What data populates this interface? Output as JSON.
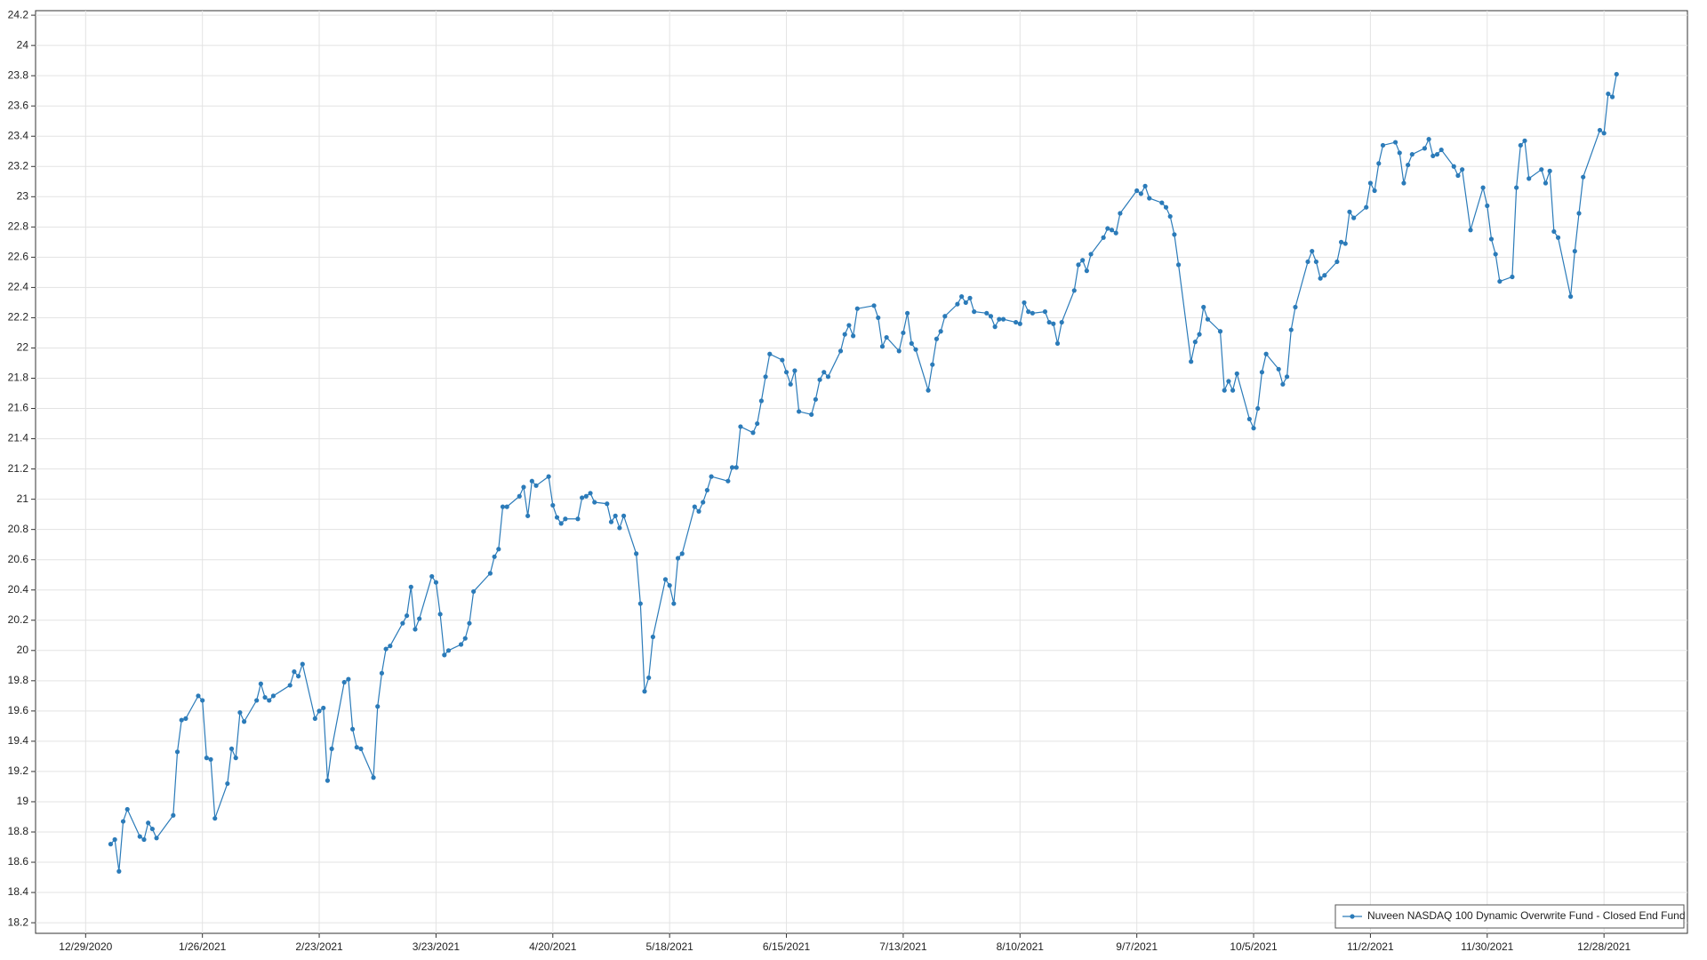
{
  "chart_data": {
    "type": "line",
    "x": [
      "1/4/2021",
      "1/5/2021",
      "1/6/2021",
      "1/7/2021",
      "1/8/2021",
      "1/11/2021",
      "1/12/2021",
      "1/13/2021",
      "1/14/2021",
      "1/15/2021",
      "1/19/2021",
      "1/20/2021",
      "1/21/2021",
      "1/22/2021",
      "1/25/2021",
      "1/26/2021",
      "1/27/2021",
      "1/28/2021",
      "1/29/2021",
      "2/1/2021",
      "2/2/2021",
      "2/3/2021",
      "2/4/2021",
      "2/5/2021",
      "2/8/2021",
      "2/9/2021",
      "2/10/2021",
      "2/11/2021",
      "2/12/2021",
      "2/16/2021",
      "2/17/2021",
      "2/18/2021",
      "2/19/2021",
      "2/22/2021",
      "2/23/2021",
      "2/24/2021",
      "2/25/2021",
      "2/26/2021",
      "3/1/2021",
      "3/2/2021",
      "3/3/2021",
      "3/4/2021",
      "3/5/2021",
      "3/8/2021",
      "3/9/2021",
      "3/10/2021",
      "3/11/2021",
      "3/12/2021",
      "3/15/2021",
      "3/16/2021",
      "3/17/2021",
      "3/18/2021",
      "3/19/2021",
      "3/22/2021",
      "3/23/2021",
      "3/24/2021",
      "3/25/2021",
      "3/26/2021",
      "3/29/2021",
      "3/30/2021",
      "3/31/2021",
      "4/1/2021",
      "4/5/2021",
      "4/6/2021",
      "4/7/2021",
      "4/8/2021",
      "4/9/2021",
      "4/12/2021",
      "4/13/2021",
      "4/14/2021",
      "4/15/2021",
      "4/16/2021",
      "4/19/2021",
      "4/20/2021",
      "4/21/2021",
      "4/22/2021",
      "4/23/2021",
      "4/26/2021",
      "4/27/2021",
      "4/28/2021",
      "4/29/2021",
      "4/30/2021",
      "5/3/2021",
      "5/4/2021",
      "5/5/2021",
      "5/6/2021",
      "5/7/2021",
      "5/10/2021",
      "5/11/2021",
      "5/12/2021",
      "5/13/2021",
      "5/14/2021",
      "5/17/2021",
      "5/18/2021",
      "5/19/2021",
      "5/20/2021",
      "5/21/2021",
      "5/24/2021",
      "5/25/2021",
      "5/26/2021",
      "5/27/2021",
      "5/28/2021",
      "6/1/2021",
      "6/2/2021",
      "6/3/2021",
      "6/4/2021",
      "6/7/2021",
      "6/8/2021",
      "6/9/2021",
      "6/10/2021",
      "6/11/2021",
      "6/14/2021",
      "6/15/2021",
      "6/16/2021",
      "6/17/2021",
      "6/18/2021",
      "6/21/2021",
      "6/22/2021",
      "6/23/2021",
      "6/24/2021",
      "6/25/2021",
      "6/28/2021",
      "6/29/2021",
      "6/30/2021",
      "7/1/2021",
      "7/2/2021",
      "7/6/2021",
      "7/7/2021",
      "7/8/2021",
      "7/9/2021",
      "7/12/2021",
      "7/13/2021",
      "7/14/2021",
      "7/15/2021",
      "7/16/2021",
      "7/19/2021",
      "7/20/2021",
      "7/21/2021",
      "7/22/2021",
      "7/23/2021",
      "7/26/2021",
      "7/27/2021",
      "7/28/2021",
      "7/29/2021",
      "7/30/2021",
      "8/2/2021",
      "8/3/2021",
      "8/4/2021",
      "8/5/2021",
      "8/6/2021",
      "8/9/2021",
      "8/10/2021",
      "8/11/2021",
      "8/12/2021",
      "8/13/2021",
      "8/16/2021",
      "8/17/2021",
      "8/18/2021",
      "8/19/2021",
      "8/20/2021",
      "8/23/2021",
      "8/24/2021",
      "8/25/2021",
      "8/26/2021",
      "8/27/2021",
      "8/30/2021",
      "8/31/2021",
      "9/1/2021",
      "9/2/2021",
      "9/3/2021",
      "9/7/2021",
      "9/8/2021",
      "9/9/2021",
      "9/10/2021",
      "9/13/2021",
      "9/14/2021",
      "9/15/2021",
      "9/16/2021",
      "9/17/2021",
      "9/20/2021",
      "9/21/2021",
      "9/22/2021",
      "9/23/2021",
      "9/24/2021",
      "9/27/2021",
      "9/28/2021",
      "9/29/2021",
      "9/30/2021",
      "10/1/2021",
      "10/4/2021",
      "10/5/2021",
      "10/6/2021",
      "10/7/2021",
      "10/8/2021",
      "10/11/2021",
      "10/12/2021",
      "10/13/2021",
      "10/14/2021",
      "10/15/2021",
      "10/18/2021",
      "10/19/2021",
      "10/20/2021",
      "10/21/2021",
      "10/22/2021",
      "10/25/2021",
      "10/26/2021",
      "10/27/2021",
      "10/28/2021",
      "10/29/2021",
      "11/1/2021",
      "11/2/2021",
      "11/3/2021",
      "11/4/2021",
      "11/5/2021",
      "11/8/2021",
      "11/9/2021",
      "11/10/2021",
      "11/11/2021",
      "11/12/2021",
      "11/15/2021",
      "11/16/2021",
      "11/17/2021",
      "11/18/2021",
      "11/19/2021",
      "11/22/2021",
      "11/23/2021",
      "11/24/2021",
      "11/26/2021",
      "11/29/2021",
      "11/30/2021",
      "12/1/2021",
      "12/2/2021",
      "12/3/2021",
      "12/6/2021",
      "12/7/2021",
      "12/8/2021",
      "12/9/2021",
      "12/10/2021",
      "12/13/2021",
      "12/14/2021",
      "12/15/2021",
      "12/16/2021",
      "12/17/2021",
      "12/20/2021",
      "12/21/2021",
      "12/22/2021",
      "12/23/2021",
      "12/27/2021",
      "12/28/2021",
      "12/29/2021",
      "12/30/2021",
      "12/31/2021"
    ],
    "series": [
      {
        "name": "Nuveen NASDAQ 100 Dynamic Overwrite Fund - Closed End Fund",
        "color": "#2b7bb9",
        "values": [
          18.72,
          18.75,
          18.54,
          18.87,
          18.95,
          18.77,
          18.75,
          18.86,
          18.82,
          18.76,
          18.91,
          19.33,
          19.54,
          19.55,
          19.7,
          19.67,
          19.29,
          19.28,
          18.89,
          19.12,
          19.35,
          19.29,
          19.59,
          19.53,
          19.67,
          19.78,
          19.69,
          19.67,
          19.7,
          19.77,
          19.86,
          19.83,
          19.91,
          19.55,
          19.6,
          19.62,
          19.14,
          19.35,
          19.79,
          19.81,
          19.48,
          19.36,
          19.35,
          19.16,
          19.63,
          19.85,
          20.01,
          20.03,
          20.18,
          20.23,
          20.42,
          20.14,
          20.21,
          20.49,
          20.45,
          20.24,
          19.97,
          20.0,
          20.04,
          20.08,
          20.18,
          20.39,
          20.51,
          20.62,
          20.67,
          20.95,
          20.95,
          21.02,
          21.08,
          20.89,
          21.12,
          21.09,
          21.15,
          20.96,
          20.88,
          20.84,
          20.87,
          20.87,
          21.01,
          21.02,
          21.04,
          20.98,
          20.97,
          20.85,
          20.89,
          20.81,
          20.89,
          20.64,
          20.31,
          19.73,
          19.82,
          20.09,
          20.47,
          20.43,
          20.31,
          20.61,
          20.64,
          20.95,
          20.92,
          20.98,
          21.06,
          21.15,
          21.12,
          21.21,
          21.21,
          21.48,
          21.44,
          21.5,
          21.65,
          21.81,
          21.96,
          21.92,
          21.84,
          21.76,
          21.85,
          21.58,
          21.56,
          21.66,
          21.79,
          21.84,
          21.81,
          21.98,
          22.09,
          22.15,
          22.08,
          22.26,
          22.28,
          22.2,
          22.01,
          22.07,
          21.98,
          22.1,
          22.23,
          22.03,
          21.99,
          21.72,
          21.89,
          22.06,
          22.11,
          22.21,
          22.29,
          22.34,
          22.3,
          22.33,
          22.24,
          22.23,
          22.21,
          22.14,
          22.19,
          22.19,
          22.17,
          22.16,
          22.3,
          22.24,
          22.23,
          22.24,
          22.17,
          22.16,
          22.03,
          22.17,
          22.38,
          22.55,
          22.58,
          22.51,
          22.62,
          22.73,
          22.79,
          22.78,
          22.76,
          22.89,
          23.04,
          23.02,
          23.07,
          22.99,
          22.96,
          22.93,
          22.87,
          22.75,
          22.55,
          21.91,
          22.04,
          22.09,
          22.27,
          22.19,
          22.11,
          21.72,
          21.78,
          21.72,
          21.83,
          21.53,
          21.47,
          21.6,
          21.84,
          21.96,
          21.86,
          21.76,
          21.81,
          22.12,
          22.27,
          22.57,
          22.64,
          22.57,
          22.46,
          22.48,
          22.57,
          22.7,
          22.69,
          22.9,
          22.86,
          22.93,
          23.09,
          23.04,
          23.22,
          23.34,
          23.36,
          23.29,
          23.09,
          23.21,
          23.28,
          23.32,
          23.38,
          23.27,
          23.28,
          23.31,
          23.2,
          23.14,
          23.18,
          22.78,
          23.06,
          22.94,
          22.72,
          22.62,
          22.44,
          22.47,
          23.06,
          23.34,
          23.37,
          23.12,
          23.18,
          23.09,
          23.17,
          22.77,
          22.73,
          22.34,
          22.64,
          22.89,
          23.13,
          23.44,
          23.42,
          23.68,
          23.66,
          23.81
        ]
      }
    ],
    "xlim": [
      "12/17/2020",
      "1/17/2022"
    ],
    "xticks": [
      "12/29/2020",
      "1/26/2021",
      "2/23/2021",
      "3/23/2021",
      "4/20/2021",
      "5/18/2021",
      "6/15/2021",
      "7/13/2021",
      "8/10/2021",
      "9/7/2021",
      "10/5/2021",
      "11/2/2021",
      "11/30/2021",
      "12/28/2021"
    ],
    "ylim": [
      18.13,
      24.23
    ],
    "yticks": [
      18.2,
      18.4,
      18.6,
      18.8,
      19,
      19.2,
      19.4,
      19.6,
      19.8,
      20,
      20.2,
      20.4,
      20.6,
      20.8,
      21,
      21.2,
      21.4,
      21.6,
      21.8,
      22,
      22.2,
      22.4,
      22.6,
      22.8,
      23,
      23.2,
      23.4,
      23.6,
      23.8,
      24,
      24.2
    ],
    "grid": true,
    "legend": "bottom-right"
  }
}
